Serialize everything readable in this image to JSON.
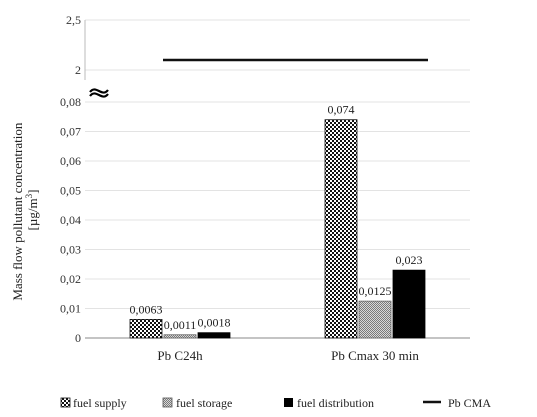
{
  "chart_data": {
    "type": "bar",
    "ylabel_line1": "Mass flow pollutant concentration",
    "ylabel_line2_prefix": "[µg/m",
    "ylabel_line2_sup": "3",
    "ylabel_line2_suffix": "]",
    "categories": [
      "Pb C24h",
      "Pb Cmax 30 min"
    ],
    "series": [
      {
        "name": "fuel supply",
        "values": [
          0.0063,
          0.074
        ],
        "labels": [
          "0,0063",
          "0,074"
        ],
        "pattern": "checker",
        "color": "#111111"
      },
      {
        "name": "fuel storage",
        "values": [
          0.0011,
          0.0125
        ],
        "labels": [
          "0,0011",
          "0,0125"
        ],
        "pattern": "fine",
        "color": "#9a9a9a"
      },
      {
        "name": "fuel distribution",
        "values": [
          0.0018,
          0.023
        ],
        "labels": [
          "0,0018",
          "0,023"
        ],
        "pattern": "solid",
        "color": "#000000"
      }
    ],
    "line_series": {
      "name": "Pb CMA",
      "value": 2.1,
      "color": "#111111"
    },
    "axis": {
      "type": "broken",
      "lower_range": [
        0,
        0.08
      ],
      "lower_ticks": [
        "0",
        "0,01",
        "0,02",
        "0,03",
        "0,04",
        "0,05",
        "0,06",
        "0,07",
        "0,08"
      ],
      "upper_range": [
        2,
        2.5
      ],
      "upper_ticks": [
        "2",
        "2,5"
      ]
    },
    "grid": true,
    "legend_position": "bottom"
  }
}
